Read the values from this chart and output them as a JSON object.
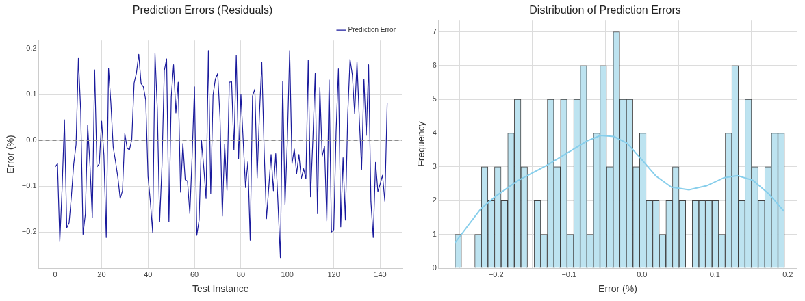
{
  "chart_data": [
    {
      "type": "line",
      "title": "Prediction Errors (Residuals)",
      "xlabel": "Test Instance",
      "ylabel": "Error (%)",
      "x": [
        0,
        1,
        2,
        3,
        4,
        5,
        6,
        7,
        8,
        9,
        10,
        11,
        12,
        13,
        14,
        15,
        16,
        17,
        18,
        19,
        20,
        21,
        22,
        23,
        24,
        25,
        26,
        27,
        28,
        29,
        30,
        31,
        32,
        33,
        34,
        35,
        36,
        37,
        38,
        39,
        40,
        41,
        42,
        43,
        44,
        45,
        46,
        47,
        48,
        49,
        50,
        51,
        52,
        53,
        54,
        55,
        56,
        57,
        58,
        59,
        60,
        61,
        62,
        63,
        64,
        65,
        66,
        67,
        68,
        69,
        70,
        71,
        72,
        73,
        74,
        75,
        76,
        77,
        78,
        79,
        80,
        81,
        82,
        83,
        84,
        85,
        86,
        87,
        88,
        89,
        90,
        91,
        92,
        93,
        94,
        95,
        96,
        97,
        98,
        99,
        100,
        101,
        102,
        103,
        104,
        105,
        106,
        107,
        108,
        109,
        110,
        111,
        112,
        113,
        114,
        115,
        116,
        117,
        118,
        119,
        120,
        121,
        122,
        123,
        124,
        125,
        126,
        127,
        128,
        129,
        130,
        131,
        132,
        133,
        134,
        135,
        136,
        137,
        138,
        139,
        140,
        141,
        142,
        143
      ],
      "series": [
        {
          "name": "Prediction Error",
          "color": "#1a1a9c",
          "values": [
            -0.058,
            -0.051,
            -0.221,
            -0.103,
            0.045,
            -0.191,
            -0.18,
            -0.121,
            -0.051,
            -0.009,
            0.179,
            0.064,
            -0.205,
            -0.161,
            0.033,
            -0.055,
            -0.169,
            0.154,
            -0.058,
            -0.051,
            0.042,
            -0.033,
            -0.212,
            0.157,
            0.081,
            -0.015,
            -0.046,
            -0.081,
            -0.127,
            -0.11,
            0.015,
            -0.017,
            -0.021,
            0.002,
            0.125,
            0.147,
            0.188,
            0.124,
            0.117,
            0.088,
            -0.079,
            -0.134,
            -0.201,
            0.19,
            0.068,
            -0.178,
            -0.055,
            0.152,
            0.178,
            -0.178,
            0.095,
            0.165,
            0.06,
            0.127,
            -0.113,
            -0.007,
            -0.086,
            -0.089,
            -0.16,
            -0.033,
            0.117,
            -0.207,
            -0.174,
            0.0,
            -0.059,
            -0.127,
            0.196,
            -0.116,
            0.099,
            0.134,
            0.146,
            0.05,
            -0.165,
            -0.009,
            -0.109,
            0.127,
            0.128,
            -0.021,
            0.186,
            -0.04,
            0.1,
            -0.002,
            -0.103,
            -0.047,
            -0.218,
            0.097,
            0.112,
            -0.082,
            0.059,
            0.171,
            -0.02,
            -0.171,
            -0.103,
            -0.031,
            -0.11,
            -0.029,
            -0.141,
            -0.256,
            0.129,
            -0.141,
            -0.002,
            0.196,
            -0.051,
            -0.019,
            -0.073,
            -0.031,
            -0.084,
            -0.062,
            -0.084,
            0.175,
            -0.123,
            0.002,
            0.146,
            -0.16,
            0.116,
            -0.035,
            -0.013,
            -0.176,
            0.132,
            -0.2,
            -0.195,
            0.02,
            0.156,
            -0.189,
            -0.038,
            -0.174,
            0.055,
            0.177,
            0.143,
            0.058,
            0.172,
            0.046,
            -0.063,
            0.133,
            0.011,
            0.165,
            -0.134,
            -0.212,
            -0.048,
            -0.112,
            -0.095,
            -0.076,
            -0.133,
            0.081
          ]
        }
      ],
      "xlim": [
        -7.1,
        149.6
      ],
      "xticks": [
        0,
        20,
        40,
        60,
        80,
        100,
        120,
        140
      ],
      "ylim": [
        -0.279,
        0.218
      ],
      "yticks": [
        {
          "value": -0.2,
          "label": "−0.2"
        },
        {
          "value": -0.1,
          "label": "−0.1"
        },
        {
          "value": 0,
          "label": "0.0"
        },
        0.1,
        0.2
      ],
      "ref_lines": [
        {
          "axis": "y",
          "value": 0,
          "color": "#8c8c8c",
          "line_style": "dashed"
        }
      ],
      "grid": true,
      "legend": "top right",
      "marker": "none",
      "line_style": "solid"
    },
    {
      "type": "histogram",
      "title": "Distribution of Prediction Errors",
      "xlabel": "Error (%)",
      "ylabel": "Frequency",
      "bins": [
        -0.2564,
        -0.2474,
        -0.2383,
        -0.2293,
        -0.2202,
        -0.2112,
        -0.2022,
        -0.1931,
        -0.1841,
        -0.175,
        -0.166,
        -0.157,
        -0.1479,
        -0.1389,
        -0.1298,
        -0.1208,
        -0.1118,
        -0.1027,
        -0.0937,
        -0.0846,
        -0.0756,
        -0.0666,
        -0.0575,
        -0.0485,
        -0.0394,
        -0.0304,
        -0.0214,
        -0.0123,
        -0.0033,
        0.0058,
        0.0148,
        0.0238,
        0.0329,
        0.0419,
        0.051,
        0.06,
        0.069,
        0.0781,
        0.0871,
        0.0962,
        0.1052,
        0.1142,
        0.1233,
        0.1323,
        0.1414,
        0.1504,
        0.1594,
        0.1685,
        0.1775,
        0.1866,
        0.1956
      ],
      "values": [
        1,
        0,
        0,
        1,
        3,
        2,
        3,
        2,
        4,
        5,
        3,
        0,
        2,
        1,
        5,
        3,
        5,
        1,
        5,
        6,
        1,
        4,
        6,
        3,
        7,
        5,
        5,
        3,
        4,
        2,
        2,
        1,
        2,
        3,
        2,
        0,
        2,
        2,
        2,
        2,
        1,
        4,
        6,
        2,
        5,
        3,
        2,
        3,
        4,
        4
      ],
      "color": "#bde3f0",
      "series": [
        {
          "type": "line",
          "color": "#87ceeb",
          "x": [
            -0.2564,
            -0.2213,
            -0.2,
            -0.1695,
            -0.1299,
            -0.1,
            -0.075,
            -0.0567,
            -0.0385,
            -0.0203,
            0.0,
            0.0191,
            0.0403,
            0.0645,
            0.0888,
            0.113,
            0.1312,
            0.1524,
            0.1736,
            0.1948
          ],
          "values": [
            0.75,
            1.75,
            2.14,
            2.6,
            3.05,
            3.44,
            3.77,
            3.93,
            3.9,
            3.7,
            3.21,
            2.73,
            2.4,
            2.32,
            2.44,
            2.68,
            2.74,
            2.6,
            2.21,
            1.69
          ]
        }
      ],
      "xlim": [
        -0.2787,
        0.2124
      ],
      "xticks": [
        {
          "value": -0.2,
          "label": "−0.2"
        },
        {
          "value": -0.1,
          "label": "−0.1"
        },
        {
          "value": 0,
          "label": "0.0"
        },
        0.1,
        0.2
      ],
      "ylim": [
        0,
        7.35
      ],
      "yticks": [
        0,
        1,
        2,
        3,
        4,
        5,
        6,
        7
      ],
      "grid": true
    }
  ]
}
